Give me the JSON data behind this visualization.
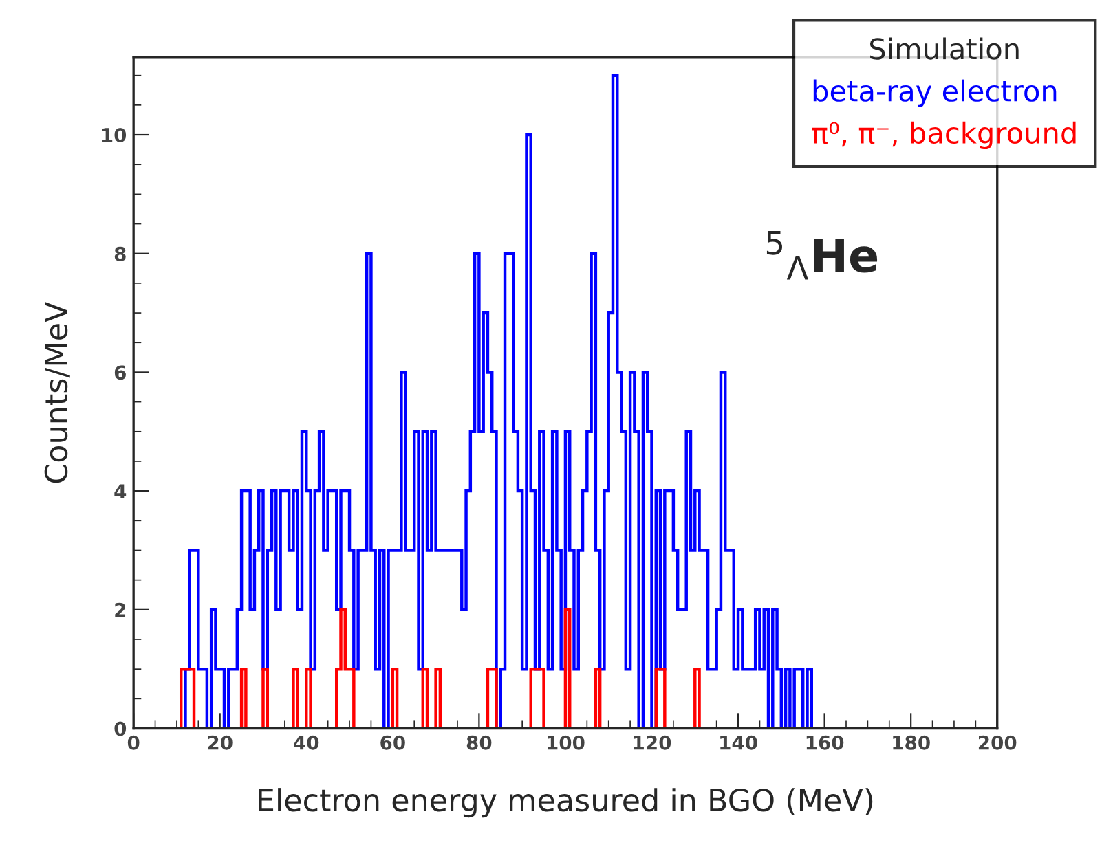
{
  "chart_data": {
    "type": "histogram",
    "xlabel": "Electron energy measured in BGO (MeV)",
    "ylabel": "Counts/MeV",
    "legend_title": "Simulation",
    "annotations": [
      "$^{5}$$_{Λ}$He"
    ],
    "bins": [
      0,
      1,
      2,
      3,
      4,
      5,
      6,
      7,
      8,
      9,
      10,
      11,
      12,
      13,
      14,
      15,
      16,
      17,
      18,
      19,
      20,
      21,
      22,
      23,
      24,
      25,
      26,
      27,
      28,
      29,
      30,
      31,
      32,
      33,
      34,
      35,
      36,
      37,
      38,
      39,
      40,
      41,
      42,
      43,
      44,
      45,
      46,
      47,
      48,
      49,
      50,
      51,
      52,
      53,
      54,
      55,
      56,
      57,
      58,
      59,
      60,
      61,
      62,
      63,
      64,
      65,
      66,
      67,
      68,
      69,
      70,
      71,
      72,
      73,
      74,
      75,
      76,
      77,
      78,
      79,
      80,
      81,
      82,
      83,
      84,
      85,
      86,
      87,
      88,
      89,
      90,
      91,
      92,
      93,
      94,
      95,
      96,
      97,
      98,
      99,
      100,
      101,
      102,
      103,
      104,
      105,
      106,
      107,
      108,
      109,
      110,
      111,
      112,
      113,
      114,
      115,
      116,
      117,
      118,
      119,
      120,
      121,
      122,
      123,
      124,
      125,
      126,
      127,
      128,
      129,
      130,
      131,
      132,
      133,
      134,
      135,
      136,
      137,
      138,
      139,
      140,
      141,
      142,
      143,
      144,
      145,
      146,
      147,
      148,
      149,
      150,
      151,
      152,
      153,
      154,
      155,
      156,
      157,
      158,
      159,
      160,
      161,
      162,
      163,
      164,
      165,
      166,
      167,
      168,
      169,
      170,
      171,
      172,
      173,
      174,
      175,
      176,
      177,
      178,
      179,
      180,
      181,
      182,
      183,
      184,
      185,
      186,
      187,
      188,
      189,
      190,
      191,
      192,
      193,
      194,
      195,
      196,
      197,
      198,
      199,
      200
    ],
    "series": [
      {
        "name": "beta-ray electron",
        "color": "#0000ff",
        "values": [
          0,
          0,
          0,
          0,
          0,
          0,
          0,
          0,
          0,
          0,
          0,
          0,
          1,
          3,
          3,
          1,
          1,
          0,
          2,
          1,
          1,
          0,
          1,
          1,
          2,
          4,
          4,
          2,
          3,
          4,
          1,
          3,
          4,
          2,
          4,
          4,
          3,
          4,
          2,
          5,
          4,
          1,
          4,
          5,
          3,
          4,
          4,
          2,
          4,
          4,
          3,
          1,
          3,
          3,
          8,
          3,
          1,
          3,
          0,
          3,
          3,
          3,
          6,
          3,
          3,
          5,
          1,
          5,
          3,
          5,
          3,
          3,
          3,
          3,
          3,
          3,
          2,
          4,
          5,
          8,
          5,
          7,
          6,
          5,
          0,
          1,
          8,
          8,
          5,
          4,
          1,
          10,
          4,
          1,
          5,
          3,
          1,
          5,
          3,
          1,
          5,
          3,
          1,
          3,
          4,
          5,
          8,
          3,
          1,
          4,
          7,
          11,
          6,
          5,
          1,
          6,
          5,
          0,
          6,
          5,
          0,
          4,
          1,
          4,
          4,
          3,
          2,
          2,
          5,
          3,
          4,
          3,
          3,
          1,
          1,
          2,
          6,
          3,
          3,
          1,
          2,
          1,
          1,
          1,
          2,
          1,
          2,
          0,
          2,
          1,
          0,
          1,
          0,
          1,
          1,
          0,
          1,
          0,
          0,
          0,
          0,
          0,
          0,
          0,
          0,
          0,
          0,
          0,
          0,
          0,
          0,
          0,
          0,
          0,
          0,
          0,
          0,
          0,
          0,
          0,
          0,
          0,
          0,
          0,
          0,
          0,
          0,
          0,
          0,
          0,
          0,
          0,
          0,
          0,
          0,
          0,
          0,
          0,
          0,
          0
        ]
      },
      {
        "name": "π⁰, π⁻, background",
        "color": "#ff0000",
        "values": [
          0,
          0,
          0,
          0,
          0,
          0,
          0,
          0,
          0,
          0,
          0,
          1,
          1,
          1,
          0,
          0,
          0,
          0,
          0,
          0,
          0,
          0,
          0,
          0,
          0,
          1,
          0,
          0,
          0,
          0,
          1,
          0,
          0,
          0,
          0,
          0,
          0,
          1,
          0,
          0,
          1,
          0,
          0,
          0,
          0,
          0,
          0,
          1,
          2,
          1,
          1,
          0,
          0,
          0,
          0,
          0,
          0,
          0,
          0,
          0,
          1,
          0,
          0,
          0,
          0,
          0,
          0,
          1,
          0,
          0,
          1,
          0,
          0,
          0,
          0,
          0,
          0,
          0,
          0,
          0,
          0,
          0,
          1,
          1,
          0,
          0,
          0,
          0,
          0,
          0,
          0,
          0,
          1,
          1,
          1,
          0,
          0,
          0,
          0,
          0,
          2,
          0,
          0,
          0,
          0,
          0,
          0,
          1,
          0,
          0,
          0,
          0,
          0,
          0,
          0,
          0,
          0,
          0,
          0,
          0,
          0,
          1,
          1,
          0,
          0,
          0,
          0,
          0,
          0,
          0,
          1,
          0,
          0,
          0,
          0,
          0,
          0,
          0,
          0,
          0,
          0,
          0,
          0,
          0,
          0,
          0,
          0,
          0,
          0,
          0,
          0,
          0,
          0,
          0,
          0,
          0,
          0,
          0,
          0,
          0,
          0,
          0,
          0,
          0,
          0,
          0,
          0,
          0,
          0,
          0,
          0,
          0,
          0,
          0,
          0,
          0,
          0,
          0,
          0,
          0,
          0,
          0,
          0,
          0,
          0,
          0,
          0,
          0,
          0,
          0,
          0,
          0,
          0,
          0,
          0,
          0,
          0,
          0,
          0,
          0
        ]
      }
    ],
    "xlim": [
      0,
      200
    ],
    "xticks": [
      0,
      20,
      40,
      60,
      80,
      100,
      120,
      140,
      160,
      180,
      200
    ],
    "ylim": [
      0,
      11.3
    ],
    "yticks": [
      0,
      2,
      4,
      6,
      8,
      10
    ],
    "grid": false,
    "legend": "top right"
  }
}
